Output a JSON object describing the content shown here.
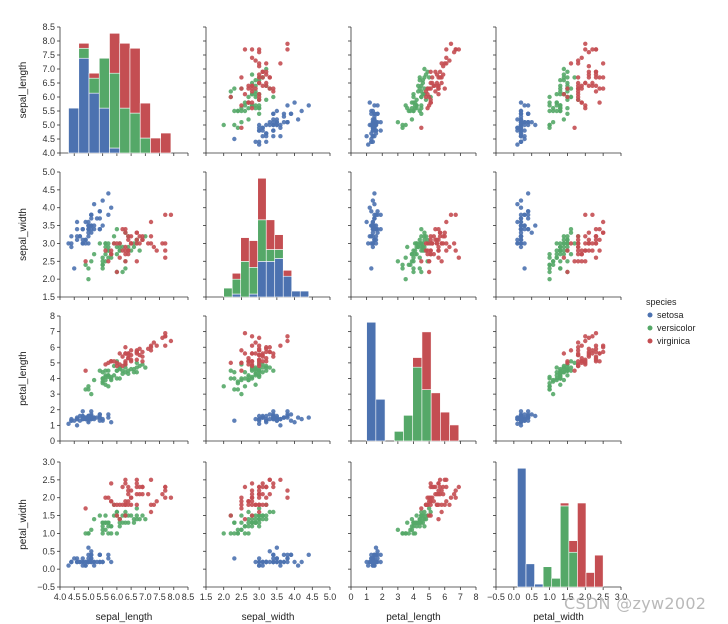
{
  "chart_data": {
    "type": "scatter",
    "title": "",
    "description_type": "pairplot",
    "variables": [
      "sepal_length",
      "sepal_width",
      "petal_length",
      "petal_width"
    ],
    "axis_ranges": {
      "sepal_length": [
        4.0,
        8.5
      ],
      "sepal_width": [
        1.5,
        5.0
      ],
      "petal_length": [
        0,
        8
      ],
      "petal_width": [
        -0.5,
        3.0
      ]
    },
    "axis_ticks": {
      "sepal_length": [
        4.0,
        4.5,
        5.0,
        5.5,
        6.0,
        6.5,
        7.0,
        7.5,
        8.0,
        8.5
      ],
      "sepal_width": [
        1.5,
        2.0,
        2.5,
        3.0,
        3.5,
        4.0,
        4.5,
        5.0
      ],
      "petal_length": [
        0,
        1,
        2,
        3,
        4,
        5,
        6,
        7,
        8
      ],
      "petal_width": [
        -0.5,
        0.0,
        0.5,
        1.0,
        1.5,
        2.0,
        2.5,
        3.0
      ]
    },
    "x_tick_labels": {
      "sepal_length": [
        "4.0",
        "4.5",
        "5.0",
        "5.5",
        "6.0",
        "6.5",
        "7.0",
        "7.5",
        "8.0",
        "8.5"
      ],
      "sepal_width": [
        "1.5",
        "2.0",
        "2.5",
        "3.0",
        "3.5",
        "4.0",
        "4.5",
        "5.0"
      ],
      "petal_length": [
        "0",
        "1",
        "2",
        "3",
        "4",
        "5",
        "6",
        "7",
        "8"
      ],
      "petal_width": [
        "−0.5",
        "0.0",
        "0.5",
        "1.0",
        "1.5",
        "2.0",
        "2.5",
        "3.0"
      ]
    },
    "y_tick_labels": {
      "sepal_length": [
        "4.0",
        "4.5",
        "5.0",
        "5.5",
        "6.0",
        "6.5",
        "7.0",
        "7.5",
        "8.0",
        "8.5"
      ],
      "sepal_width": [
        "1.5",
        "2.0",
        "2.5",
        "3.0",
        "3.5",
        "4.0",
        "4.5",
        "5.0"
      ],
      "petal_length": [
        "0",
        "1",
        "2",
        "3",
        "4",
        "5",
        "6",
        "7",
        "8"
      ],
      "petal_width": [
        "−0.5",
        "0.0",
        "0.5",
        "1.0",
        "1.5",
        "2.0",
        "2.5",
        "3.0"
      ]
    },
    "legend": {
      "title": "species",
      "placement": "right",
      "entries": [
        "setosa",
        "versicolor",
        "virginica"
      ]
    },
    "colors": {
      "setosa": "#4c72b0",
      "versicolor": "#55a868",
      "virginica": "#c44e52"
    },
    "series": [
      {
        "name": "setosa",
        "sepal_length": [
          5.1,
          4.9,
          4.7,
          4.6,
          5.0,
          5.4,
          4.6,
          5.0,
          4.4,
          4.9,
          5.4,
          4.8,
          4.8,
          4.3,
          5.8,
          5.7,
          5.4,
          5.1,
          5.7,
          5.1,
          5.4,
          5.1,
          4.6,
          5.1,
          4.8,
          5.0,
          5.0,
          5.2,
          5.2,
          4.7,
          4.8,
          5.4,
          5.2,
          5.5,
          4.9,
          5.0,
          5.5,
          4.9,
          4.4,
          5.1,
          5.0,
          4.5,
          4.4,
          5.0,
          5.1,
          4.8,
          5.1,
          4.6,
          5.3,
          5.0
        ],
        "sepal_width": [
          3.5,
          3.0,
          3.2,
          3.1,
          3.6,
          3.9,
          3.4,
          3.4,
          2.9,
          3.1,
          3.7,
          3.4,
          3.0,
          3.0,
          4.0,
          4.4,
          3.9,
          3.5,
          3.8,
          3.8,
          3.4,
          3.7,
          3.6,
          3.3,
          3.4,
          3.0,
          3.4,
          3.5,
          3.4,
          3.2,
          3.1,
          3.4,
          4.1,
          4.2,
          3.1,
          3.2,
          3.5,
          3.6,
          3.0,
          3.4,
          3.5,
          2.3,
          3.2,
          3.5,
          3.8,
          3.0,
          3.8,
          3.2,
          3.7,
          3.3
        ],
        "petal_length": [
          1.4,
          1.4,
          1.3,
          1.5,
          1.4,
          1.7,
          1.4,
          1.5,
          1.4,
          1.5,
          1.5,
          1.6,
          1.4,
          1.1,
          1.2,
          1.5,
          1.3,
          1.4,
          1.7,
          1.5,
          1.7,
          1.5,
          1.0,
          1.7,
          1.9,
          1.6,
          1.6,
          1.5,
          1.4,
          1.6,
          1.6,
          1.5,
          1.5,
          1.4,
          1.5,
          1.2,
          1.3,
          1.4,
          1.3,
          1.5,
          1.3,
          1.3,
          1.3,
          1.6,
          1.9,
          1.4,
          1.6,
          1.4,
          1.5,
          1.4
        ],
        "petal_width": [
          0.2,
          0.2,
          0.2,
          0.2,
          0.2,
          0.4,
          0.3,
          0.2,
          0.2,
          0.1,
          0.2,
          0.2,
          0.1,
          0.1,
          0.2,
          0.4,
          0.4,
          0.3,
          0.3,
          0.3,
          0.2,
          0.4,
          0.2,
          0.5,
          0.2,
          0.2,
          0.4,
          0.2,
          0.2,
          0.2,
          0.2,
          0.4,
          0.1,
          0.2,
          0.2,
          0.2,
          0.2,
          0.1,
          0.2,
          0.2,
          0.3,
          0.3,
          0.2,
          0.6,
          0.4,
          0.3,
          0.2,
          0.2,
          0.2,
          0.2
        ]
      },
      {
        "name": "versicolor",
        "sepal_length": [
          7.0,
          6.4,
          6.9,
          5.5,
          6.5,
          5.7,
          6.3,
          4.9,
          6.6,
          5.2,
          5.0,
          5.9,
          6.0,
          6.1,
          5.6,
          6.7,
          5.6,
          5.8,
          6.2,
          5.6,
          5.9,
          6.1,
          6.3,
          6.1,
          6.4,
          6.6,
          6.8,
          6.7,
          6.0,
          5.7,
          5.5,
          5.5,
          5.8,
          6.0,
          5.4,
          6.0,
          6.7,
          6.3,
          5.6,
          5.5,
          5.5,
          6.1,
          5.8,
          5.0,
          5.6,
          5.7,
          5.7,
          6.2,
          5.1,
          5.7
        ],
        "sepal_width": [
          3.2,
          3.2,
          3.1,
          2.3,
          2.8,
          2.8,
          3.3,
          2.4,
          2.9,
          2.7,
          2.0,
          3.0,
          2.2,
          2.9,
          2.9,
          3.1,
          3.0,
          2.7,
          2.2,
          2.5,
          3.2,
          2.8,
          2.5,
          2.8,
          2.9,
          3.0,
          2.8,
          3.0,
          2.9,
          2.6,
          2.4,
          2.4,
          2.7,
          2.7,
          3.0,
          3.4,
          3.1,
          2.3,
          3.0,
          2.5,
          2.6,
          3.0,
          2.6,
          2.3,
          2.7,
          3.0,
          2.9,
          2.9,
          2.5,
          2.8
        ],
        "petal_length": [
          4.7,
          4.5,
          4.9,
          4.0,
          4.6,
          4.5,
          4.7,
          3.3,
          4.6,
          3.9,
          3.5,
          4.2,
          4.0,
          4.7,
          3.6,
          4.4,
          4.5,
          4.1,
          4.5,
          3.9,
          4.8,
          4.0,
          4.9,
          4.7,
          4.3,
          4.4,
          4.8,
          5.0,
          4.5,
          3.5,
          3.8,
          3.7,
          3.9,
          5.1,
          4.5,
          4.5,
          4.7,
          4.4,
          4.1,
          4.0,
          4.4,
          4.6,
          4.0,
          3.3,
          4.2,
          4.2,
          4.2,
          4.3,
          3.0,
          4.1
        ],
        "petal_width": [
          1.4,
          1.5,
          1.5,
          1.3,
          1.5,
          1.3,
          1.6,
          1.0,
          1.3,
          1.4,
          1.0,
          1.5,
          1.0,
          1.4,
          1.3,
          1.4,
          1.5,
          1.0,
          1.5,
          1.1,
          1.8,
          1.3,
          1.5,
          1.2,
          1.3,
          1.4,
          1.4,
          1.7,
          1.5,
          1.0,
          1.1,
          1.0,
          1.2,
          1.6,
          1.5,
          1.6,
          1.5,
          1.3,
          1.3,
          1.3,
          1.2,
          1.4,
          1.2,
          1.0,
          1.3,
          1.2,
          1.3,
          1.3,
          1.1,
          1.3
        ]
      },
      {
        "name": "virginica",
        "sepal_length": [
          6.3,
          5.8,
          7.1,
          6.3,
          6.5,
          7.6,
          4.9,
          7.3,
          6.7,
          7.2,
          6.5,
          6.4,
          6.8,
          5.7,
          5.8,
          6.4,
          6.5,
          7.7,
          7.7,
          6.0,
          6.9,
          5.6,
          7.7,
          6.3,
          6.7,
          7.2,
          6.2,
          6.1,
          6.4,
          7.2,
          7.4,
          7.9,
          6.4,
          6.3,
          6.1,
          7.7,
          6.3,
          6.4,
          6.0,
          6.9,
          6.7,
          6.9,
          5.8,
          6.8,
          6.7,
          6.7,
          6.3,
          6.5,
          6.2,
          5.9
        ],
        "sepal_width": [
          3.3,
          2.7,
          3.0,
          2.9,
          3.0,
          3.0,
          2.5,
          2.9,
          2.5,
          3.6,
          3.2,
          2.7,
          3.0,
          2.5,
          2.8,
          3.2,
          3.0,
          3.8,
          2.6,
          2.2,
          3.2,
          2.8,
          2.8,
          2.7,
          3.3,
          3.2,
          2.8,
          3.0,
          2.8,
          3.0,
          2.8,
          3.8,
          2.8,
          2.8,
          2.6,
          3.0,
          3.4,
          3.1,
          3.0,
          3.1,
          3.1,
          3.1,
          2.7,
          3.2,
          3.3,
          3.0,
          2.5,
          3.0,
          3.4,
          3.0
        ],
        "petal_length": [
          6.0,
          5.1,
          5.9,
          5.6,
          5.8,
          6.6,
          4.5,
          6.3,
          5.8,
          6.1,
          5.1,
          5.3,
          5.5,
          5.0,
          5.1,
          5.3,
          5.5,
          6.7,
          6.9,
          5.0,
          5.7,
          4.9,
          6.7,
          4.9,
          5.7,
          6.0,
          4.8,
          4.9,
          5.6,
          5.8,
          6.1,
          6.4,
          5.6,
          5.1,
          5.6,
          6.1,
          5.6,
          5.5,
          4.8,
          5.4,
          5.6,
          5.1,
          5.1,
          5.9,
          5.7,
          5.2,
          5.0,
          5.2,
          5.4,
          5.1
        ],
        "petal_width": [
          2.5,
          1.9,
          2.1,
          1.8,
          2.2,
          2.1,
          1.7,
          1.8,
          1.8,
          2.5,
          2.0,
          1.9,
          2.1,
          2.0,
          2.4,
          2.3,
          1.8,
          2.2,
          2.3,
          1.5,
          2.3,
          2.0,
          2.0,
          1.8,
          2.1,
          1.8,
          1.8,
          1.8,
          2.1,
          1.6,
          1.9,
          2.0,
          2.2,
          1.5,
          1.4,
          2.3,
          2.4,
          1.8,
          1.8,
          2.1,
          2.4,
          2.3,
          1.9,
          2.3,
          2.5,
          2.3,
          1.9,
          2.0,
          2.3,
          1.8
        ]
      }
    ],
    "histograms": {
      "sepal_length": {
        "bins": [
          4.3,
          4.66,
          5.02,
          5.38,
          5.74,
          6.1,
          6.46,
          6.82,
          7.18,
          7.54,
          7.9
        ],
        "counts": {
          "setosa": [
            9,
            19,
            12,
            9,
            1,
            0,
            0,
            0,
            0,
            0
          ],
          "versicolor": [
            0,
            2,
            3,
            10,
            15,
            9,
            8,
            3,
            0,
            0
          ],
          "virginica": [
            0,
            1,
            1,
            0,
            8,
            13,
            13,
            7,
            3,
            4
          ]
        }
      },
      "sepal_width": {
        "bins": [
          2.0,
          2.24,
          2.48,
          2.72,
          2.96,
          3.2,
          3.44,
          3.68,
          3.92,
          4.16,
          4.4
        ],
        "counts": {
          "setosa": [
            0,
            1,
            0,
            1,
            12,
            12,
            13,
            7,
            2,
            2
          ],
          "versicolor": [
            3,
            5,
            12,
            9,
            14,
            4,
            3,
            0,
            0,
            0
          ],
          "virginica": [
            0,
            2,
            8,
            9,
            14,
            10,
            5,
            2,
            0,
            0
          ]
        }
      },
      "petal_length": {
        "bins": [
          1.0,
          1.59,
          2.18,
          2.77,
          3.36,
          3.95,
          4.54,
          5.13,
          5.72,
          6.31,
          6.9
        ],
        "counts": {
          "setosa": [
            37,
            13,
            0,
            0,
            0,
            0,
            0,
            0,
            0,
            0
          ],
          "versicolor": [
            0,
            0,
            0,
            3,
            8,
            23,
            16,
            0,
            0,
            0
          ],
          "virginica": [
            0,
            0,
            0,
            0,
            0,
            3,
            18,
            15,
            9,
            5
          ]
        }
      },
      "petal_width": {
        "bins": [
          0.1,
          0.34,
          0.58,
          0.82,
          1.06,
          1.3,
          1.54,
          1.78,
          2.02,
          2.26,
          2.5
        ],
        "counts": {
          "setosa": [
            41,
            8,
            1,
            0,
            0,
            0,
            0,
            0,
            0,
            0
          ],
          "versicolor": [
            0,
            0,
            0,
            7,
            3,
            28,
            12,
            0,
            0,
            0
          ],
          "virginica": [
            0,
            0,
            0,
            0,
            0,
            1,
            4,
            29,
            5,
            11
          ]
        }
      }
    }
  },
  "watermark": "CSDN @zyw2002"
}
